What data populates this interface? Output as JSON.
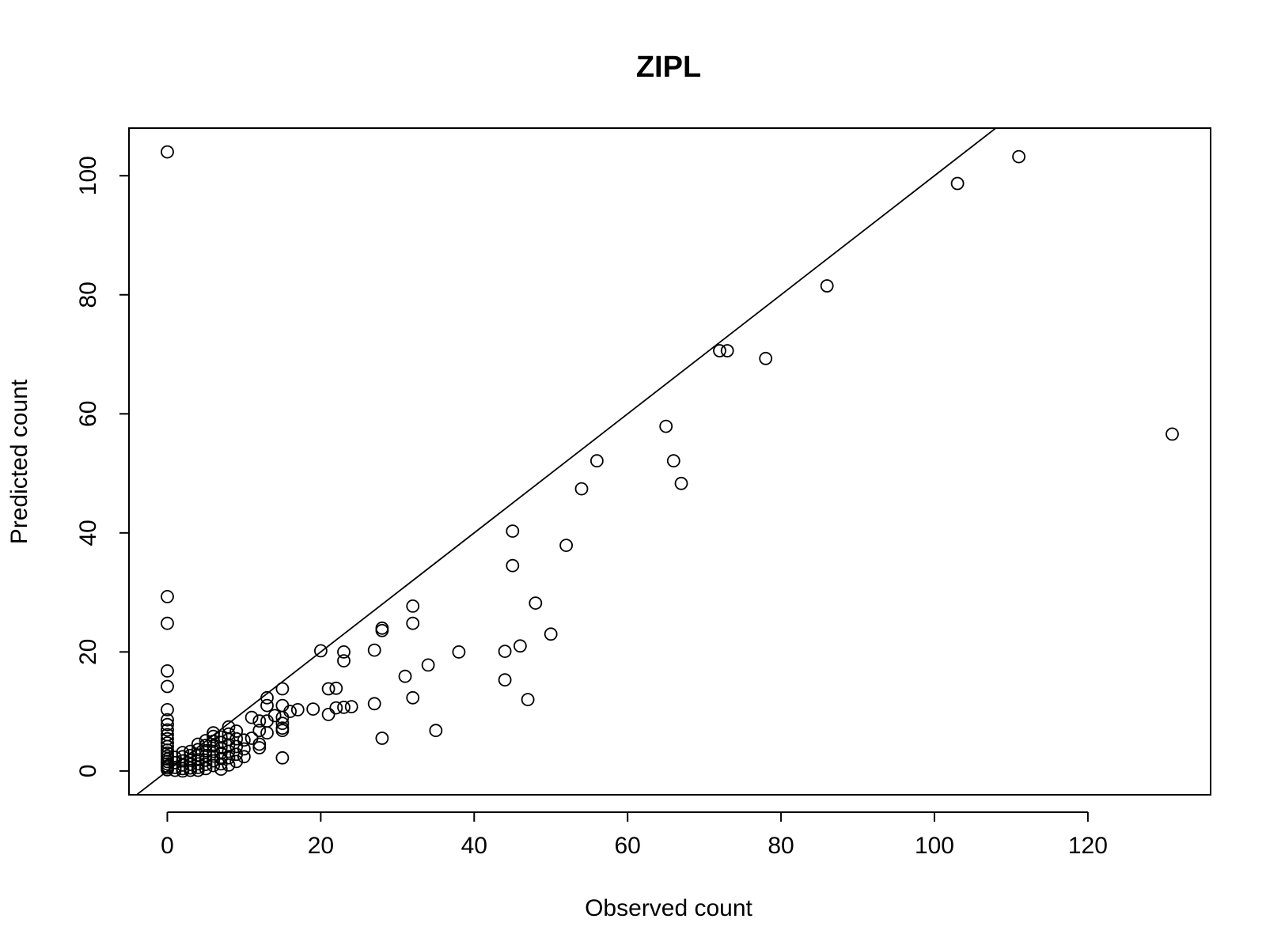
{
  "chart_data": {
    "type": "scatter",
    "title": "ZIPL",
    "xlabel": "Observed count",
    "ylabel": "Predicted count",
    "xlim": [
      -5,
      136
    ],
    "ylim": [
      -4,
      108
    ],
    "x_ticks": [
      0,
      20,
      40,
      60,
      80,
      100,
      120
    ],
    "y_ticks": [
      0,
      20,
      40,
      60,
      80,
      100
    ],
    "grid": false,
    "reference_line": {
      "slope": 1,
      "intercept": 0
    },
    "points": [
      [
        0,
        104
      ],
      [
        0,
        29.3
      ],
      [
        0,
        24.8
      ],
      [
        0,
        16.8
      ],
      [
        0,
        14.2
      ],
      [
        0,
        10.3
      ],
      [
        0,
        8.6
      ],
      [
        0,
        7.8
      ],
      [
        0,
        6.9
      ],
      [
        0,
        6.1
      ],
      [
        0,
        5.4
      ],
      [
        0,
        4.7
      ],
      [
        0,
        4.1
      ],
      [
        0,
        3.5
      ],
      [
        0,
        3.0
      ],
      [
        0,
        2.5
      ],
      [
        0,
        2.0
      ],
      [
        0,
        1.6
      ],
      [
        0,
        1.2
      ],
      [
        0,
        0.8
      ],
      [
        0,
        0.5
      ],
      [
        0,
        0.2
      ],
      [
        1,
        2.3
      ],
      [
        1,
        1.4
      ],
      [
        1,
        0.6
      ],
      [
        1,
        0.1
      ],
      [
        2,
        3.1
      ],
      [
        2,
        2.4
      ],
      [
        2,
        1.7
      ],
      [
        2,
        1.0
      ],
      [
        2,
        0.4
      ],
      [
        2,
        0.0
      ],
      [
        3,
        3.3
      ],
      [
        3,
        2.6
      ],
      [
        3,
        1.8
      ],
      [
        3,
        1.1
      ],
      [
        3,
        0.5
      ],
      [
        3,
        0.1
      ],
      [
        4,
        4.5
      ],
      [
        4,
        3.6
      ],
      [
        4,
        2.7
      ],
      [
        4,
        1.9
      ],
      [
        4,
        1.2
      ],
      [
        4,
        0.6
      ],
      [
        4,
        0.1
      ],
      [
        5,
        5.1
      ],
      [
        5,
        4.3
      ],
      [
        5,
        3.4
      ],
      [
        5,
        2.6
      ],
      [
        5,
        1.8
      ],
      [
        5,
        1.1
      ],
      [
        5,
        0.4
      ],
      [
        6,
        6.4
      ],
      [
        6,
        5.8
      ],
      [
        6,
        5.0
      ],
      [
        6,
        4.2
      ],
      [
        6,
        3.3
      ],
      [
        6,
        2.5
      ],
      [
        6,
        1.7
      ],
      [
        6,
        0.9
      ],
      [
        7,
        5.7
      ],
      [
        7,
        4.8
      ],
      [
        7,
        3.9
      ],
      [
        7,
        3.0
      ],
      [
        7,
        2.1
      ],
      [
        7,
        1.2
      ],
      [
        7,
        0.3
      ],
      [
        8,
        7.4
      ],
      [
        8,
        6.2
      ],
      [
        8,
        5.3
      ],
      [
        8,
        4.4
      ],
      [
        8,
        3.3
      ],
      [
        8,
        2.2
      ],
      [
        8,
        1.0
      ],
      [
        9,
        6.7
      ],
      [
        9,
        5.4
      ],
      [
        9,
        4.1
      ],
      [
        9,
        2.8
      ],
      [
        9,
        1.6
      ],
      [
        10,
        5.2
      ],
      [
        10,
        3.7
      ],
      [
        10,
        2.4
      ],
      [
        11,
        9.0
      ],
      [
        11,
        5.5
      ],
      [
        12,
        8.4
      ],
      [
        12,
        6.8
      ],
      [
        12,
        4.5
      ],
      [
        12,
        3.9
      ],
      [
        13,
        12.3
      ],
      [
        13,
        11.0
      ],
      [
        13,
        8.4
      ],
      [
        13,
        6.4
      ],
      [
        14,
        9.3
      ],
      [
        15,
        13.8
      ],
      [
        15,
        11.0
      ],
      [
        15,
        9.0
      ],
      [
        15,
        8.0
      ],
      [
        15,
        7.2
      ],
      [
        15,
        6.8
      ],
      [
        15,
        2.2
      ],
      [
        16,
        10.0
      ],
      [
        17,
        10.3
      ],
      [
        19,
        10.4
      ],
      [
        20,
        20.2
      ],
      [
        21,
        13.8
      ],
      [
        21,
        9.5
      ],
      [
        22,
        13.9
      ],
      [
        22,
        10.6
      ],
      [
        23,
        20.0
      ],
      [
        23,
        18.5
      ],
      [
        23,
        10.7
      ],
      [
        24,
        10.8
      ],
      [
        27,
        20.3
      ],
      [
        27,
        11.3
      ],
      [
        28,
        24.0
      ],
      [
        28,
        23.6
      ],
      [
        28,
        5.5
      ],
      [
        31,
        15.9
      ],
      [
        32,
        27.7
      ],
      [
        32,
        24.8
      ],
      [
        32,
        12.3
      ],
      [
        34,
        17.8
      ],
      [
        35,
        6.8
      ],
      [
        38,
        20.0
      ],
      [
        44,
        20.1
      ],
      [
        44,
        15.3
      ],
      [
        45,
        40.3
      ],
      [
        45,
        34.5
      ],
      [
        46,
        21.0
      ],
      [
        47,
        12.0
      ],
      [
        48,
        28.2
      ],
      [
        50,
        23.0
      ],
      [
        52,
        37.9
      ],
      [
        54,
        47.4
      ],
      [
        56,
        52.1
      ],
      [
        65,
        57.9
      ],
      [
        66,
        52.1
      ],
      [
        67,
        48.3
      ],
      [
        72,
        70.6
      ],
      [
        73,
        70.6
      ],
      [
        78,
        69.3
      ],
      [
        86,
        81.5
      ],
      [
        103,
        98.7
      ],
      [
        111,
        103.2
      ],
      [
        131,
        56.6
      ]
    ]
  }
}
